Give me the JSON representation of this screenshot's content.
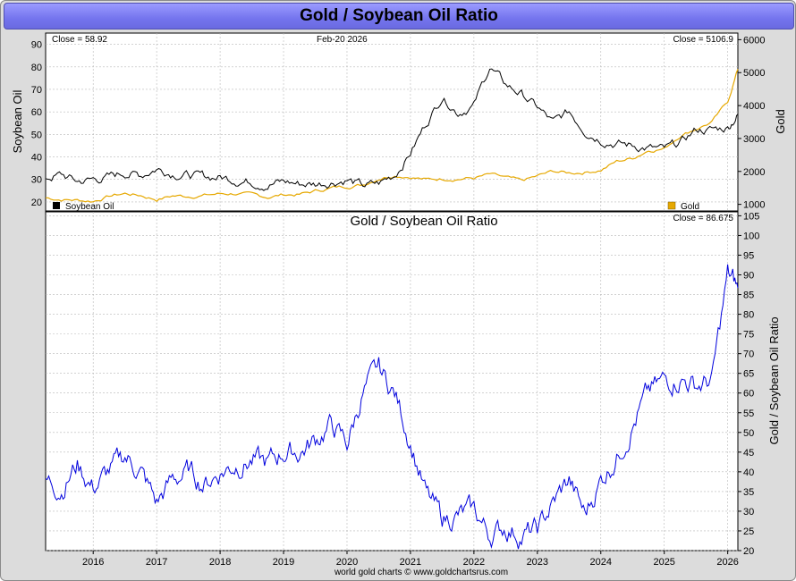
{
  "chart_title": "Gold / Soybean Oil Ratio",
  "footer": "world gold charts © www.goldchartsrus.com",
  "colors": {
    "soybean": "#000000",
    "gold": "#e6a800",
    "ratio": "#0000dd",
    "grid": "#b8b8b8"
  },
  "chart_data": [
    {
      "type": "line",
      "panel": "top",
      "date_label": "Feb-20 2026",
      "left_close": "Close = 58.92",
      "right_close": "Close = 5106.9",
      "ylabel_left": "Soybean Oil",
      "ylabel_right": "Gold",
      "ylim_left": [
        16,
        95
      ],
      "yticks_left": [
        "20",
        "30",
        "40",
        "50",
        "60",
        "70",
        "80",
        "90"
      ],
      "ylim_right": [
        800,
        6200
      ],
      "yticks_right": [
        "1000",
        "2000",
        "3000",
        "4000",
        "5000",
        "6000"
      ],
      "xlim": [
        2015.25,
        2026.16
      ],
      "x": [
        2015.25,
        2015.5,
        2015.75,
        2016.0,
        2016.25,
        2016.5,
        2016.75,
        2017.0,
        2017.25,
        2017.5,
        2017.75,
        2018.0,
        2018.25,
        2018.5,
        2018.75,
        2019.0,
        2019.25,
        2019.5,
        2019.75,
        2020.0,
        2020.25,
        2020.5,
        2020.75,
        2021.0,
        2021.25,
        2021.5,
        2021.75,
        2022.0,
        2022.25,
        2022.5,
        2022.75,
        2023.0,
        2023.25,
        2023.5,
        2023.75,
        2024.0,
        2024.25,
        2024.5,
        2024.75,
        2025.0,
        2025.25,
        2025.5,
        2025.75,
        2026.0,
        2026.16
      ],
      "series": [
        {
          "name": "Soybean Oil",
          "values": [
            31,
            32,
            29,
            30,
            31,
            33,
            32,
            35,
            33,
            32,
            31,
            31,
            30,
            29,
            28,
            29,
            28,
            28,
            29,
            30,
            27,
            28,
            32,
            42,
            55,
            67,
            60,
            63,
            80,
            72,
            68,
            62,
            55,
            60,
            52,
            48,
            46,
            45,
            44,
            43,
            46,
            52,
            52,
            53,
            58.92
          ]
        },
        {
          "name": "Gold",
          "values": [
            1200,
            1150,
            1130,
            1100,
            1250,
            1330,
            1270,
            1150,
            1260,
            1250,
            1280,
            1320,
            1330,
            1280,
            1220,
            1300,
            1300,
            1400,
            1500,
            1550,
            1600,
            1800,
            1900,
            1850,
            1750,
            1780,
            1790,
            1800,
            1900,
            1800,
            1700,
            1850,
            2000,
            1950,
            1980,
            2050,
            2300,
            2400,
            2650,
            2700,
            3100,
            3300,
            3500,
            4100,
            5106.9
          ]
        }
      ],
      "legend": [
        "Soybean Oil",
        "Gold"
      ]
    },
    {
      "type": "line",
      "panel": "bottom",
      "title": "Gold  /  Soybean Oil Ratio",
      "close_label": "Close = 86.675",
      "ylabel": "Gold / Soybean Oil Ratio",
      "ylim": [
        20,
        106
      ],
      "yticks": [
        "20",
        "25",
        "30",
        "35",
        "40",
        "45",
        "50",
        "55",
        "60",
        "65",
        "70",
        "75",
        "80",
        "85",
        "90",
        "95",
        "100",
        "105"
      ],
      "xlim": [
        2015.25,
        2026.16
      ],
      "xticks": [
        "2016",
        "2017",
        "2018",
        "2019",
        "2020",
        "2021",
        "2022",
        "2023",
        "2024",
        "2025",
        "2026"
      ],
      "x": [
        2015.25,
        2015.5,
        2015.75,
        2016.0,
        2016.25,
        2016.5,
        2016.75,
        2017.0,
        2017.25,
        2017.5,
        2017.75,
        2018.0,
        2018.25,
        2018.5,
        2018.75,
        2019.0,
        2019.25,
        2019.5,
        2019.75,
        2020.0,
        2020.25,
        2020.5,
        2020.75,
        2021.0,
        2021.25,
        2021.5,
        2021.75,
        2022.0,
        2022.25,
        2022.5,
        2022.75,
        2023.0,
        2023.25,
        2023.5,
        2023.75,
        2024.0,
        2024.25,
        2024.5,
        2024.75,
        2025.0,
        2025.25,
        2025.5,
        2025.75,
        2026.0,
        2026.16
      ],
      "series": [
        {
          "name": "Gold / Soybean Oil Ratio",
          "values": [
            38,
            36,
            42,
            36,
            40,
            44,
            40,
            32,
            38,
            40,
            37,
            40,
            42,
            43,
            42,
            45,
            45,
            48,
            52,
            47,
            60,
            66,
            60,
            48,
            34,
            28,
            29,
            30,
            24,
            26,
            24,
            25,
            32,
            38,
            29,
            38,
            44,
            52,
            60,
            63,
            64,
            62,
            63,
            90,
            86.675
          ]
        }
      ]
    }
  ]
}
